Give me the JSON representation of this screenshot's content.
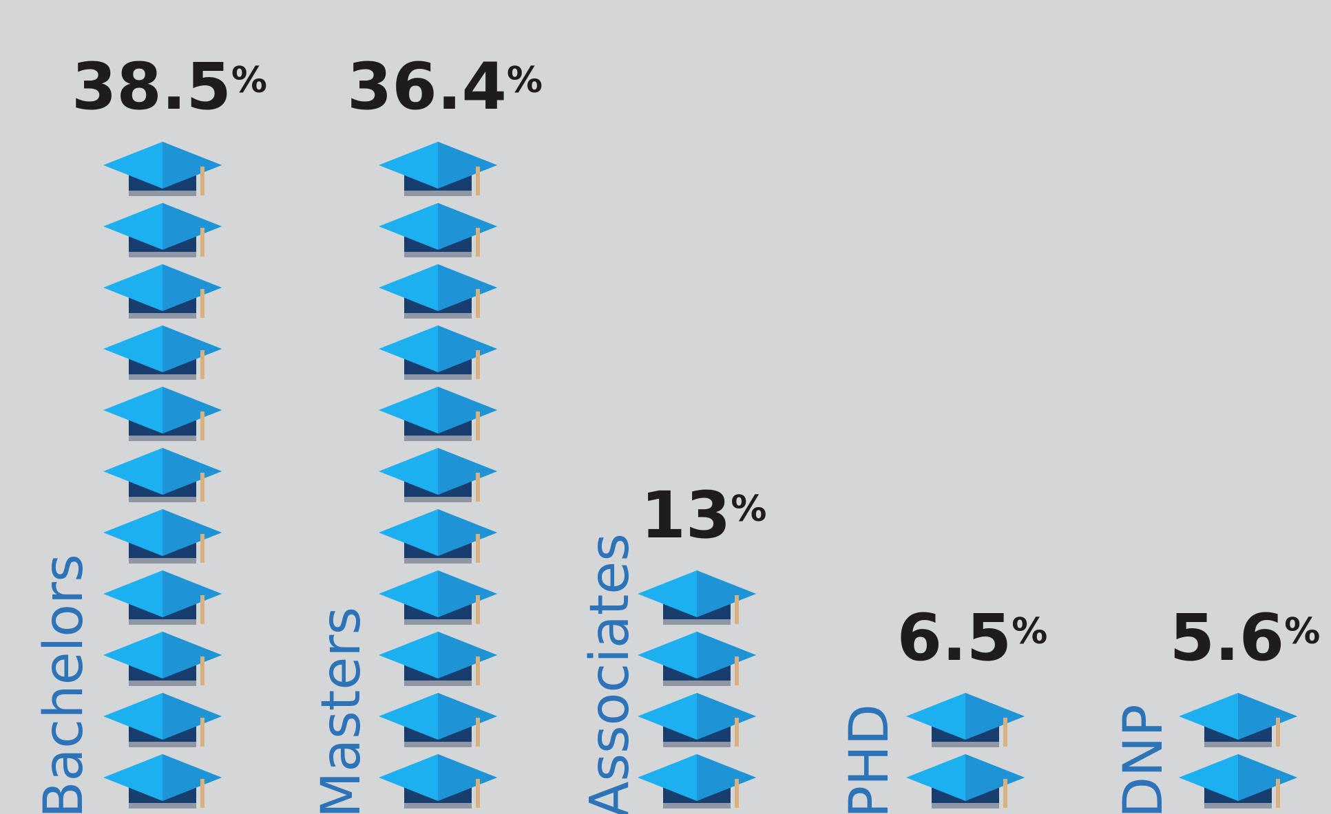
{
  "chart_data": {
    "type": "bar",
    "title": "",
    "xlabel": "",
    "ylabel": "",
    "categories": [
      "Bachelors",
      "Masters",
      "Associates",
      "PHD",
      "DNP"
    ],
    "values": [
      38.5,
      36.4,
      13,
      6.5,
      5.6
    ],
    "value_labels": [
      "38.5",
      "36.4",
      "13",
      "6.5",
      "5.6"
    ],
    "unit": "%",
    "ylim": [
      0,
      40
    ],
    "grid": false,
    "legend": "none"
  },
  "icon": "graduation-cap-icon",
  "colors": {
    "background": "#d5d6d8",
    "cap_top_light": "#1cb0f0",
    "cap_top_dark": "#1e93d6",
    "cap_base": "#173e6e",
    "cap_base_shadow": "#8e97a3",
    "tassel": "#d9b07e",
    "label": "#2d73b8",
    "value_text": "#1e1c1d"
  }
}
